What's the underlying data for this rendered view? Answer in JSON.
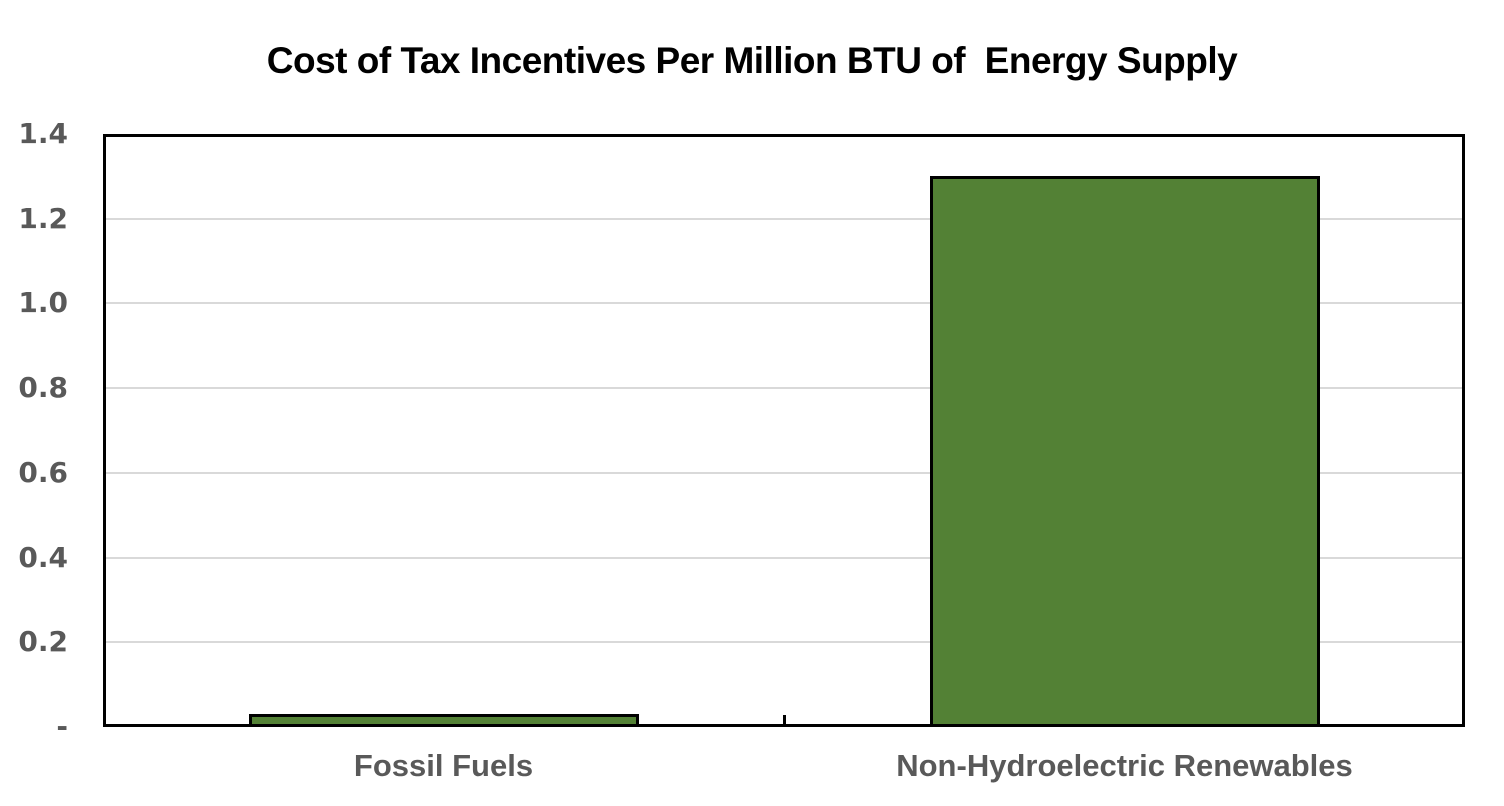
{
  "colors": {
    "background": "#ffffff",
    "bar_fill": "#538135",
    "bar_border": "#000000",
    "gridline": "#d9d9d9",
    "axis_border": "#000000",
    "tick_label": "#595959",
    "category_label": "#595959",
    "title": "#000000"
  },
  "chart_data": {
    "type": "bar",
    "title": "Cost of Tax Incentives Per Million BTU of  Energy Supply",
    "categories": [
      "Fossil Fuels",
      "Non-Hydroelectric Renewables"
    ],
    "values": [
      0.03,
      1.3
    ],
    "series": [
      {
        "name": "Cost of Tax Incentives Per Million BTU",
        "values": [
          0.03,
          1.3
        ]
      }
    ],
    "xlabel": "",
    "ylabel": "",
    "ylim": [
      0,
      1.4
    ],
    "y_ticks": [
      {
        "value": 0,
        "label": "-"
      },
      {
        "value": 0.2,
        "label": "0.2"
      },
      {
        "value": 0.4,
        "label": "0.4"
      },
      {
        "value": 0.6,
        "label": "0.6"
      },
      {
        "value": 0.8,
        "label": "0.8"
      },
      {
        "value": 1.0,
        "label": "1.0"
      },
      {
        "value": 1.2,
        "label": "1.2"
      },
      {
        "value": 1.4,
        "label": "1.4"
      }
    ],
    "grid": "horizontal",
    "legend": "none",
    "data_labels": "none",
    "bar_fill": "#538135",
    "bar_border": "#000000"
  }
}
